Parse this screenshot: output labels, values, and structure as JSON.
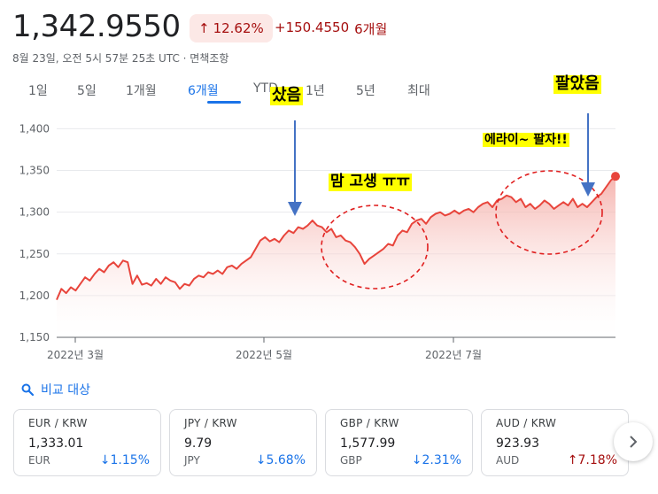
{
  "header": {
    "price": "1,342.9550",
    "percent_change": "12.62%",
    "absolute_change": "+150.4550",
    "period_label": "6개월",
    "subline": "8월 23일, 오전 5시 57분 25초 UTC · 면책조항"
  },
  "tabs": [
    {
      "label": "1일"
    },
    {
      "label": "5일"
    },
    {
      "label": "1개월"
    },
    {
      "label": "6개월"
    },
    {
      "label": "YTD"
    },
    {
      "label": "1년"
    },
    {
      "label": "5년"
    },
    {
      "label": "최대"
    }
  ],
  "active_tab": "6개월",
  "annotations": {
    "bought": "샀음",
    "struggle": "맘 고생 ㅠㅠ",
    "whatever": "에라이~ 팔자!!",
    "sold": "팔았음"
  },
  "compare": {
    "label": "비교 대상",
    "icon": "search-icon"
  },
  "cards": [
    {
      "pair": "EUR / KRW",
      "value": "1,333.01",
      "currency": "EUR",
      "change": "1.15%",
      "direction": "down"
    },
    {
      "pair": "JPY / KRW",
      "value": "9.79",
      "currency": "JPY",
      "change": "5.68%",
      "direction": "down"
    },
    {
      "pair": "GBP / KRW",
      "value": "1,577.99",
      "currency": "GBP",
      "change": "2.31%",
      "direction": "down"
    },
    {
      "pair": "AUD / KRW",
      "value": "923.93",
      "currency": "AUD",
      "change": "7.18%",
      "direction": "up"
    }
  ],
  "colors": {
    "line": "#e8453c",
    "fill": "#fbe1df",
    "up": "#a50e0e",
    "down": "#1a73e8",
    "accent": "#1a73e8",
    "highlight": "#ffff00"
  },
  "chart_data": {
    "type": "area",
    "x_tick_labels": [
      "2022년 3월",
      "2022년 5월",
      "2022년 7월"
    ],
    "y_ticks": [
      1150,
      1200,
      1250,
      1300,
      1350,
      1400
    ],
    "ylim": [
      1150,
      1410
    ],
    "values": [
      1195,
      1208,
      1203,
      1210,
      1206,
      1214,
      1222,
      1218,
      1226,
      1232,
      1228,
      1236,
      1240,
      1234,
      1242,
      1240,
      1214,
      1224,
      1213,
      1215,
      1212,
      1220,
      1214,
      1222,
      1218,
      1216,
      1208,
      1214,
      1212,
      1220,
      1224,
      1222,
      1228,
      1226,
      1230,
      1226,
      1234,
      1236,
      1232,
      1238,
      1242,
      1246,
      1256,
      1266,
      1270,
      1265,
      1268,
      1264,
      1272,
      1278,
      1275,
      1282,
      1280,
      1284,
      1290,
      1284,
      1282,
      1276,
      1280,
      1270,
      1272,
      1266,
      1264,
      1258,
      1250,
      1238,
      1244,
      1248,
      1252,
      1256,
      1262,
      1260,
      1272,
      1278,
      1276,
      1286,
      1290,
      1292,
      1286,
      1294,
      1298,
      1300,
      1296,
      1298,
      1302,
      1298,
      1302,
      1304,
      1300,
      1306,
      1310,
      1312,
      1306,
      1314,
      1316,
      1320,
      1318,
      1312,
      1316,
      1306,
      1310,
      1304,
      1308,
      1314,
      1310,
      1304,
      1308,
      1312,
      1308,
      1316,
      1306,
      1310,
      1306,
      1312,
      1318,
      1322,
      1330,
      1338,
      1342.955
    ]
  }
}
